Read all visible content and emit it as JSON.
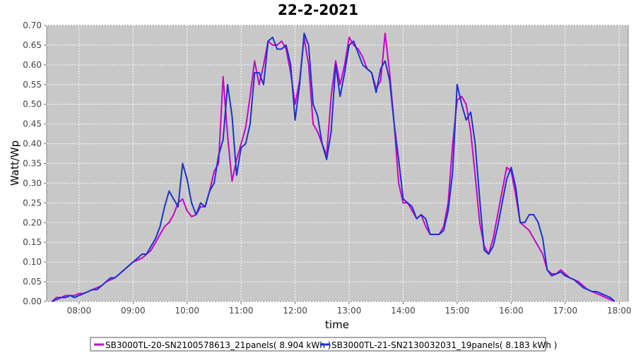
{
  "chart_data": {
    "type": "line",
    "title": "22-2-2021",
    "xlabel": "time",
    "ylabel": "Watt/Wp",
    "xlim": [
      "07:24",
      "18:10"
    ],
    "ylim": [
      0,
      0.7
    ],
    "x_ticks": [
      "08:00",
      "09:00",
      "10:00",
      "11:00",
      "12:00",
      "13:00",
      "14:00",
      "15:00",
      "16:00",
      "17:00",
      "18:00"
    ],
    "y_ticks": [
      "0.00",
      "0.05",
      "0.10",
      "0.15",
      "0.20",
      "0.25",
      "0.30",
      "0.35",
      "0.40",
      "0.45",
      "0.50",
      "0.55",
      "0.60",
      "0.65",
      "0.70"
    ],
    "grid": true,
    "legend_position": "bottom",
    "series": [
      {
        "name": "SB3000TL-20-SN2100578613_21panels( 8.904 kWh )",
        "color": "#cc00cc",
        "x": [
          "07:30",
          "07:35",
          "07:40",
          "07:45",
          "07:50",
          "07:55",
          "08:00",
          "08:05",
          "08:10",
          "08:15",
          "08:20",
          "08:25",
          "08:30",
          "08:35",
          "08:40",
          "08:45",
          "08:50",
          "08:55",
          "09:00",
          "09:05",
          "09:10",
          "09:15",
          "09:20",
          "09:25",
          "09:30",
          "09:35",
          "09:40",
          "09:45",
          "09:50",
          "09:55",
          "10:00",
          "10:05",
          "10:10",
          "10:15",
          "10:20",
          "10:25",
          "10:30",
          "10:35",
          "10:40",
          "10:45",
          "10:50",
          "10:55",
          "11:00",
          "11:05",
          "11:10",
          "11:15",
          "11:20",
          "11:25",
          "11:30",
          "11:35",
          "11:40",
          "11:45",
          "11:50",
          "11:55",
          "12:00",
          "12:05",
          "12:10",
          "12:15",
          "12:20",
          "12:25",
          "12:30",
          "12:35",
          "12:40",
          "12:45",
          "12:50",
          "12:55",
          "13:00",
          "13:05",
          "13:10",
          "13:15",
          "13:20",
          "13:25",
          "13:30",
          "13:35",
          "13:40",
          "13:45",
          "13:50",
          "13:55",
          "14:00",
          "14:05",
          "14:10",
          "14:15",
          "14:20",
          "14:25",
          "14:30",
          "14:35",
          "14:40",
          "14:45",
          "14:50",
          "14:55",
          "15:00",
          "15:05",
          "15:10",
          "15:15",
          "15:20",
          "15:25",
          "15:30",
          "15:35",
          "15:40",
          "15:45",
          "15:50",
          "15:55",
          "16:00",
          "16:05",
          "16:10",
          "16:15",
          "16:20",
          "16:25",
          "16:30",
          "16:35",
          "16:40",
          "16:45",
          "16:50",
          "16:55",
          "17:00",
          "17:05",
          "17:10",
          "17:15",
          "17:20",
          "17:25",
          "17:30",
          "17:35",
          "17:40",
          "17:45",
          "17:50",
          "17:55"
        ],
        "values": [
          0.0,
          0.01,
          0.01,
          0.015,
          0.015,
          0.015,
          0.02,
          0.02,
          0.025,
          0.03,
          0.035,
          0.04,
          0.05,
          0.055,
          0.06,
          0.07,
          0.08,
          0.09,
          0.1,
          0.105,
          0.11,
          0.12,
          0.13,
          0.15,
          0.17,
          0.19,
          0.2,
          0.22,
          0.25,
          0.26,
          0.23,
          0.215,
          0.22,
          0.24,
          0.24,
          0.28,
          0.33,
          0.35,
          0.57,
          0.42,
          0.305,
          0.36,
          0.4,
          0.44,
          0.52,
          0.61,
          0.55,
          0.6,
          0.66,
          0.65,
          0.65,
          0.66,
          0.64,
          0.58,
          0.5,
          0.56,
          0.67,
          0.6,
          0.45,
          0.43,
          0.4,
          0.37,
          0.52,
          0.61,
          0.55,
          0.6,
          0.67,
          0.65,
          0.64,
          0.62,
          0.59,
          0.58,
          0.54,
          0.56,
          0.68,
          0.58,
          0.45,
          0.3,
          0.25,
          0.25,
          0.23,
          0.21,
          0.22,
          0.19,
          0.17,
          0.17,
          0.17,
          0.19,
          0.25,
          0.4,
          0.51,
          0.52,
          0.5,
          0.43,
          0.32,
          0.2,
          0.14,
          0.12,
          0.16,
          0.22,
          0.28,
          0.34,
          0.33,
          0.27,
          0.2,
          0.19,
          0.18,
          0.16,
          0.14,
          0.12,
          0.08,
          0.07,
          0.07,
          0.08,
          0.07,
          0.06,
          0.055,
          0.05,
          0.04,
          0.03,
          0.025,
          0.02,
          0.015,
          0.01,
          0.005,
          0.0
        ]
      },
      {
        "name": "SB3000TL-21-SN2130032031_19panels( 8.183 kWh )",
        "color": "#1a33cc",
        "x": [
          "07:30",
          "07:35",
          "07:40",
          "07:45",
          "07:50",
          "07:55",
          "08:00",
          "08:05",
          "08:10",
          "08:15",
          "08:20",
          "08:25",
          "08:30",
          "08:35",
          "08:40",
          "08:45",
          "08:50",
          "08:55",
          "09:00",
          "09:05",
          "09:10",
          "09:15",
          "09:20",
          "09:25",
          "09:30",
          "09:35",
          "09:40",
          "09:45",
          "09:50",
          "09:55",
          "10:00",
          "10:05",
          "10:10",
          "10:15",
          "10:20",
          "10:25",
          "10:30",
          "10:35",
          "10:40",
          "10:45",
          "10:50",
          "10:55",
          "11:00",
          "11:05",
          "11:10",
          "11:15",
          "11:20",
          "11:25",
          "11:30",
          "11:35",
          "11:40",
          "11:45",
          "11:50",
          "11:55",
          "12:00",
          "12:05",
          "12:10",
          "12:15",
          "12:20",
          "12:25",
          "12:30",
          "12:35",
          "12:40",
          "12:45",
          "12:50",
          "12:55",
          "13:00",
          "13:05",
          "13:10",
          "13:15",
          "13:20",
          "13:25",
          "13:30",
          "13:35",
          "13:40",
          "13:45",
          "13:50",
          "13:55",
          "14:00",
          "14:05",
          "14:10",
          "14:15",
          "14:20",
          "14:25",
          "14:30",
          "14:35",
          "14:40",
          "14:45",
          "14:50",
          "14:55",
          "15:00",
          "15:05",
          "15:10",
          "15:15",
          "15:20",
          "15:25",
          "15:30",
          "15:35",
          "15:40",
          "15:45",
          "15:50",
          "15:55",
          "16:00",
          "16:05",
          "16:10",
          "16:15",
          "16:20",
          "16:25",
          "16:30",
          "16:35",
          "16:40",
          "16:45",
          "16:50",
          "16:55",
          "17:00",
          "17:05",
          "17:10",
          "17:15",
          "17:20",
          "17:25",
          "17:30",
          "17:35",
          "17:40",
          "17:45",
          "17:50",
          "17:55"
        ],
        "values": [
          0.0,
          0.005,
          0.01,
          0.01,
          0.015,
          0.01,
          0.015,
          0.02,
          0.025,
          0.03,
          0.03,
          0.04,
          0.05,
          0.06,
          0.06,
          0.07,
          0.08,
          0.09,
          0.1,
          0.11,
          0.12,
          0.12,
          0.14,
          0.16,
          0.19,
          0.24,
          0.28,
          0.26,
          0.24,
          0.35,
          0.31,
          0.25,
          0.22,
          0.25,
          0.24,
          0.28,
          0.3,
          0.37,
          0.41,
          0.55,
          0.47,
          0.32,
          0.39,
          0.4,
          0.45,
          0.58,
          0.58,
          0.55,
          0.66,
          0.67,
          0.64,
          0.64,
          0.65,
          0.6,
          0.46,
          0.55,
          0.68,
          0.65,
          0.5,
          0.47,
          0.4,
          0.36,
          0.43,
          0.6,
          0.52,
          0.58,
          0.65,
          0.66,
          0.63,
          0.6,
          0.59,
          0.58,
          0.53,
          0.59,
          0.61,
          0.56,
          0.45,
          0.36,
          0.26,
          0.25,
          0.24,
          0.21,
          0.22,
          0.21,
          0.17,
          0.17,
          0.17,
          0.18,
          0.23,
          0.33,
          0.55,
          0.5,
          0.46,
          0.48,
          0.4,
          0.26,
          0.13,
          0.12,
          0.14,
          0.19,
          0.25,
          0.31,
          0.34,
          0.29,
          0.2,
          0.2,
          0.22,
          0.22,
          0.2,
          0.16,
          0.08,
          0.065,
          0.07,
          0.075,
          0.065,
          0.06,
          0.055,
          0.045,
          0.035,
          0.03,
          0.025,
          0.025,
          0.02,
          0.015,
          0.01,
          0.0
        ]
      }
    ]
  }
}
